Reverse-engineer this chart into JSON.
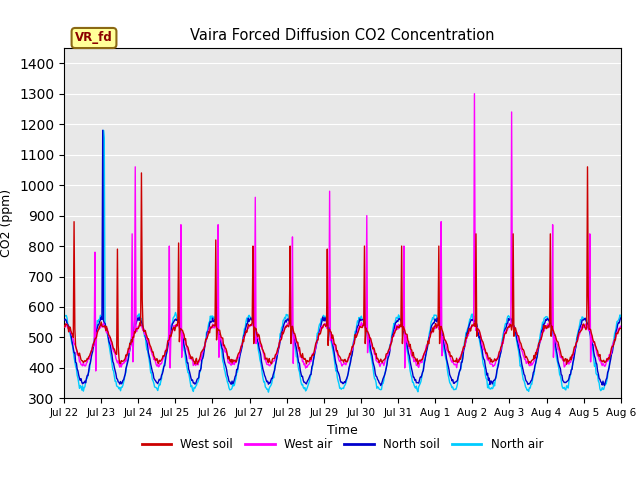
{
  "title": "Vaira Forced Diffusion CO2 Concentration",
  "xlabel": "Time",
  "ylabel": "CO2 (ppm)",
  "ylim": [
    300,
    1450
  ],
  "yticks": [
    300,
    400,
    500,
    600,
    700,
    800,
    900,
    1000,
    1100,
    1200,
    1300,
    1400
  ],
  "legend_label": "VR_fd",
  "series_labels": [
    "West soil",
    "West air",
    "North soil",
    "North air"
  ],
  "series_colors": [
    "#cc0000",
    "#ff00ff",
    "#0000cc",
    "#00ccff"
  ],
  "axes_facecolor": "#e8e8e8",
  "n_days": 15,
  "points_per_day": 48,
  "tick_labels": [
    "Jul 22",
    "Jul 23",
    "Jul 24",
    "Jul 25",
    "Jul 26",
    "Jul 27",
    "Jul 28",
    "Jul 29",
    "Jul 30",
    "Jul 31",
    "Aug 1",
    "Aug 2",
    "Aug 3",
    "Aug 4",
    "Aug 5",
    "Aug 6"
  ]
}
